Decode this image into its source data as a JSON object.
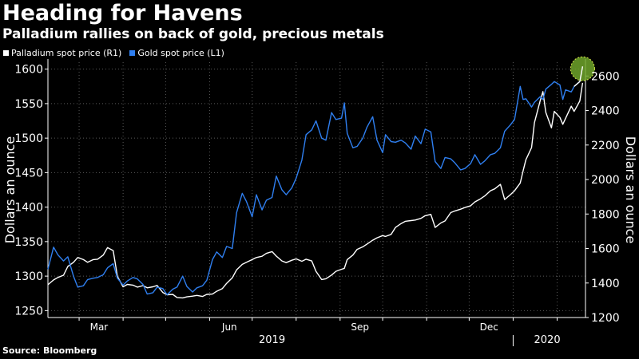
{
  "title": "Heading for Havens",
  "subtitle": "Palladium rallies on back of gold, precious metals",
  "source": "Source: Bloomberg",
  "colors": {
    "background": "#000000",
    "gold": "#2f7ff0",
    "palladium": "#ffffff",
    "highlight": "#6fa52a"
  },
  "legend": [
    {
      "label": "Palladium spot price (R1)",
      "color": "#ffffff"
    },
    {
      "label": "Gold spot price (L1)",
      "color": "#2f7ff0"
    }
  ],
  "chart_data": {
    "type": "line",
    "title": "Heading for Havens",
    "subtitle": "Palladium rallies on back of gold, precious metals",
    "ylabel_left": "Dollars an ounce",
    "ylabel_right": "Dollars an ounce",
    "ylim_left": [
      1240,
      1610
    ],
    "ylim_right": [
      1200,
      2680
    ],
    "yticks_left": [
      1250,
      1300,
      1350,
      1400,
      1450,
      1500,
      1550,
      1600
    ],
    "yticks_right": [
      1200,
      1400,
      1600,
      1800,
      2000,
      2200,
      2400,
      2600
    ],
    "xlim": [
      "2019-02-07",
      "2020-02-21"
    ],
    "month_ticks": [
      "2019-03-01",
      "2019-04-01",
      "2019-05-01",
      "2019-06-01",
      "2019-07-01",
      "2019-08-01",
      "2019-09-01",
      "2019-10-01",
      "2019-11-01",
      "2019-12-01",
      "2020-01-01",
      "2020-02-01"
    ],
    "xtick_labels": [
      {
        "date": "2019-03-15",
        "label": "Mar"
      },
      {
        "date": "2019-06-15",
        "label": "Jun"
      },
      {
        "date": "2019-09-15",
        "label": "Sep"
      },
      {
        "date": "2019-12-15",
        "label": "Dec"
      }
    ],
    "year_labels": [
      {
        "date": "2019-07-15",
        "label": "2019"
      },
      {
        "date": "2020-01-25",
        "label": "2020"
      }
    ],
    "year_divider": "2020-01-01",
    "grid": true,
    "legend_position": "top-left",
    "highlight": {
      "date": "2020-02-19",
      "series": "Gold spot price (L1)",
      "value": 1604
    },
    "series": [
      {
        "name": "Gold spot price (L1)",
        "axis": "left",
        "color": "#2f7ff0",
        "points": [
          [
            "2019-02-07",
            1310
          ],
          [
            "2019-02-11",
            1342
          ],
          [
            "2019-02-14",
            1331
          ],
          [
            "2019-02-18",
            1322
          ],
          [
            "2019-02-21",
            1328
          ],
          [
            "2019-02-25",
            1300
          ],
          [
            "2019-02-28",
            1284
          ],
          [
            "2019-03-04",
            1286
          ],
          [
            "2019-03-07",
            1295
          ],
          [
            "2019-03-11",
            1297
          ],
          [
            "2019-03-14",
            1298
          ],
          [
            "2019-03-18",
            1302
          ],
          [
            "2019-03-21",
            1312
          ],
          [
            "2019-03-25",
            1318
          ],
          [
            "2019-03-28",
            1297
          ],
          [
            "2019-04-01",
            1287
          ],
          [
            "2019-04-04",
            1293
          ],
          [
            "2019-04-08",
            1298
          ],
          [
            "2019-04-11",
            1296
          ],
          [
            "2019-04-15",
            1288
          ],
          [
            "2019-04-18",
            1274
          ],
          [
            "2019-04-22",
            1276
          ],
          [
            "2019-04-25",
            1284
          ],
          [
            "2019-04-29",
            1282
          ],
          [
            "2019-05-02",
            1273
          ],
          [
            "2019-05-06",
            1281
          ],
          [
            "2019-05-09",
            1284
          ],
          [
            "2019-05-13",
            1300
          ],
          [
            "2019-05-16",
            1285
          ],
          [
            "2019-05-20",
            1277
          ],
          [
            "2019-05-23",
            1283
          ],
          [
            "2019-05-27",
            1286
          ],
          [
            "2019-05-30",
            1294
          ],
          [
            "2019-06-03",
            1324
          ],
          [
            "2019-06-06",
            1335
          ],
          [
            "2019-06-10",
            1327
          ],
          [
            "2019-06-13",
            1343
          ],
          [
            "2019-06-17",
            1340
          ],
          [
            "2019-06-20",
            1392
          ],
          [
            "2019-06-24",
            1420
          ],
          [
            "2019-06-27",
            1408
          ],
          [
            "2019-07-01",
            1386
          ],
          [
            "2019-07-04",
            1418
          ],
          [
            "2019-07-08",
            1396
          ],
          [
            "2019-07-11",
            1410
          ],
          [
            "2019-07-15",
            1414
          ],
          [
            "2019-07-18",
            1445
          ],
          [
            "2019-07-22",
            1425
          ],
          [
            "2019-07-25",
            1418
          ],
          [
            "2019-07-29",
            1428
          ],
          [
            "2019-08-01",
            1442
          ],
          [
            "2019-08-05",
            1468
          ],
          [
            "2019-08-08",
            1505
          ],
          [
            "2019-08-12",
            1512
          ],
          [
            "2019-08-15",
            1525
          ],
          [
            "2019-08-19",
            1500
          ],
          [
            "2019-08-22",
            1497
          ],
          [
            "2019-08-26",
            1537
          ],
          [
            "2019-08-29",
            1527
          ],
          [
            "2019-09-02",
            1529
          ],
          [
            "2019-09-04",
            1551
          ],
          [
            "2019-09-06",
            1507
          ],
          [
            "2019-09-10",
            1486
          ],
          [
            "2019-09-13",
            1488
          ],
          [
            "2019-09-17",
            1500
          ],
          [
            "2019-09-20",
            1516
          ],
          [
            "2019-09-24",
            1531
          ],
          [
            "2019-09-27",
            1497
          ],
          [
            "2019-10-01",
            1479
          ],
          [
            "2019-10-03",
            1505
          ],
          [
            "2019-10-07",
            1495
          ],
          [
            "2019-10-10",
            1494
          ],
          [
            "2019-10-14",
            1497
          ],
          [
            "2019-10-17",
            1493
          ],
          [
            "2019-10-21",
            1484
          ],
          [
            "2019-10-24",
            1503
          ],
          [
            "2019-10-28",
            1492
          ],
          [
            "2019-10-31",
            1513
          ],
          [
            "2019-11-04",
            1509
          ],
          [
            "2019-11-07",
            1466
          ],
          [
            "2019-11-11",
            1456
          ],
          [
            "2019-11-14",
            1472
          ],
          [
            "2019-11-18",
            1470
          ],
          [
            "2019-11-21",
            1464
          ],
          [
            "2019-11-25",
            1454
          ],
          [
            "2019-11-28",
            1456
          ],
          [
            "2019-12-02",
            1463
          ],
          [
            "2019-12-05",
            1476
          ],
          [
            "2019-12-09",
            1462
          ],
          [
            "2019-12-12",
            1467
          ],
          [
            "2019-12-16",
            1476
          ],
          [
            "2019-12-19",
            1478
          ],
          [
            "2019-12-23",
            1486
          ],
          [
            "2019-12-26",
            1510
          ],
          [
            "2019-12-30",
            1519
          ],
          [
            "2020-01-02",
            1527
          ],
          [
            "2020-01-06",
            1575
          ],
          [
            "2020-01-08",
            1556
          ],
          [
            "2020-01-10",
            1557
          ],
          [
            "2020-01-14",
            1545
          ],
          [
            "2020-01-16",
            1552
          ],
          [
            "2020-01-20",
            1560
          ],
          [
            "2020-01-22",
            1556
          ],
          [
            "2020-01-24",
            1571
          ],
          [
            "2020-01-28",
            1578
          ],
          [
            "2020-01-30",
            1582
          ],
          [
            "2020-02-03",
            1577
          ],
          [
            "2020-02-05",
            1556
          ],
          [
            "2020-02-07",
            1570
          ],
          [
            "2020-02-11",
            1567
          ],
          [
            "2020-02-13",
            1575
          ],
          [
            "2020-02-17",
            1582
          ],
          [
            "2020-02-19",
            1604
          ]
        ]
      },
      {
        "name": "Palladium spot price (R1)",
        "axis": "right",
        "color": "#ffffff",
        "points": [
          [
            "2019-02-07",
            1390
          ],
          [
            "2019-02-11",
            1418
          ],
          [
            "2019-02-14",
            1432
          ],
          [
            "2019-02-18",
            1445
          ],
          [
            "2019-02-21",
            1496
          ],
          [
            "2019-02-25",
            1520
          ],
          [
            "2019-02-28",
            1548
          ],
          [
            "2019-03-04",
            1536
          ],
          [
            "2019-03-07",
            1520
          ],
          [
            "2019-03-11",
            1536
          ],
          [
            "2019-03-14",
            1538
          ],
          [
            "2019-03-18",
            1562
          ],
          [
            "2019-03-21",
            1605
          ],
          [
            "2019-03-25",
            1588
          ],
          [
            "2019-03-28",
            1438
          ],
          [
            "2019-04-01",
            1378
          ],
          [
            "2019-04-04",
            1392
          ],
          [
            "2019-04-08",
            1388
          ],
          [
            "2019-04-11",
            1376
          ],
          [
            "2019-04-15",
            1385
          ],
          [
            "2019-04-18",
            1372
          ],
          [
            "2019-04-22",
            1378
          ],
          [
            "2019-04-25",
            1386
          ],
          [
            "2019-04-29",
            1345
          ],
          [
            "2019-05-02",
            1332
          ],
          [
            "2019-05-06",
            1334
          ],
          [
            "2019-05-09",
            1316
          ],
          [
            "2019-05-13",
            1314
          ],
          [
            "2019-05-16",
            1320
          ],
          [
            "2019-05-20",
            1324
          ],
          [
            "2019-05-23",
            1328
          ],
          [
            "2019-05-27",
            1322
          ],
          [
            "2019-05-30",
            1334
          ],
          [
            "2019-06-03",
            1336
          ],
          [
            "2019-06-06",
            1352
          ],
          [
            "2019-06-10",
            1368
          ],
          [
            "2019-06-13",
            1398
          ],
          [
            "2019-06-17",
            1430
          ],
          [
            "2019-06-20",
            1476
          ],
          [
            "2019-06-24",
            1508
          ],
          [
            "2019-06-27",
            1520
          ],
          [
            "2019-07-01",
            1536
          ],
          [
            "2019-07-04",
            1548
          ],
          [
            "2019-07-08",
            1555
          ],
          [
            "2019-07-11",
            1572
          ],
          [
            "2019-07-15",
            1582
          ],
          [
            "2019-07-18",
            1556
          ],
          [
            "2019-07-22",
            1528
          ],
          [
            "2019-07-25",
            1518
          ],
          [
            "2019-07-29",
            1532
          ],
          [
            "2019-08-01",
            1540
          ],
          [
            "2019-08-05",
            1526
          ],
          [
            "2019-08-08",
            1538
          ],
          [
            "2019-08-12",
            1528
          ],
          [
            "2019-08-15",
            1468
          ],
          [
            "2019-08-19",
            1420
          ],
          [
            "2019-08-22",
            1425
          ],
          [
            "2019-08-26",
            1446
          ],
          [
            "2019-08-29",
            1468
          ],
          [
            "2019-09-02",
            1480
          ],
          [
            "2019-09-04",
            1485
          ],
          [
            "2019-09-06",
            1536
          ],
          [
            "2019-09-10",
            1562
          ],
          [
            "2019-09-13",
            1595
          ],
          [
            "2019-09-17",
            1610
          ],
          [
            "2019-09-20",
            1626
          ],
          [
            "2019-09-24",
            1648
          ],
          [
            "2019-09-27",
            1662
          ],
          [
            "2019-10-01",
            1675
          ],
          [
            "2019-10-03",
            1670
          ],
          [
            "2019-10-07",
            1682
          ],
          [
            "2019-10-10",
            1722
          ],
          [
            "2019-10-14",
            1745
          ],
          [
            "2019-10-17",
            1758
          ],
          [
            "2019-10-21",
            1762
          ],
          [
            "2019-10-24",
            1765
          ],
          [
            "2019-10-28",
            1775
          ],
          [
            "2019-10-31",
            1790
          ],
          [
            "2019-11-04",
            1798
          ],
          [
            "2019-11-07",
            1722
          ],
          [
            "2019-11-11",
            1748
          ],
          [
            "2019-11-14",
            1760
          ],
          [
            "2019-11-18",
            1808
          ],
          [
            "2019-11-21",
            1818
          ],
          [
            "2019-11-25",
            1828
          ],
          [
            "2019-11-28",
            1838
          ],
          [
            "2019-12-02",
            1848
          ],
          [
            "2019-12-05",
            1870
          ],
          [
            "2019-12-09",
            1888
          ],
          [
            "2019-12-12",
            1905
          ],
          [
            "2019-12-16",
            1935
          ],
          [
            "2019-12-19",
            1946
          ],
          [
            "2019-12-23",
            1972
          ],
          [
            "2019-12-26",
            1884
          ],
          [
            "2019-12-30",
            1912
          ],
          [
            "2020-01-02",
            1935
          ],
          [
            "2020-01-06",
            1980
          ],
          [
            "2020-01-08",
            2050
          ],
          [
            "2020-01-10",
            2115
          ],
          [
            "2020-01-14",
            2185
          ],
          [
            "2020-01-16",
            2330
          ],
          [
            "2020-01-20",
            2455
          ],
          [
            "2020-01-22",
            2510
          ],
          [
            "2020-01-24",
            2390
          ],
          [
            "2020-01-28",
            2300
          ],
          [
            "2020-01-30",
            2395
          ],
          [
            "2020-02-03",
            2360
          ],
          [
            "2020-02-05",
            2320
          ],
          [
            "2020-02-07",
            2355
          ],
          [
            "2020-02-11",
            2425
          ],
          [
            "2020-02-13",
            2395
          ],
          [
            "2020-02-17",
            2455
          ],
          [
            "2020-02-19",
            2560
          ]
        ]
      }
    ]
  }
}
